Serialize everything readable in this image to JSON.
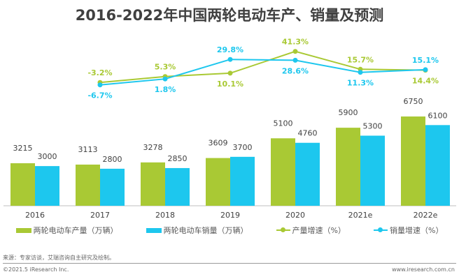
{
  "colors": {
    "production": "#a9c934",
    "sales": "#1dc7ee",
    "text": "#404040"
  },
  "chart_data": {
    "type": "bar+line",
    "title": "2016-2022年中国两轮电动车产、销量及预测",
    "categories": [
      "2016",
      "2017",
      "2018",
      "2019",
      "2020",
      "2021e",
      "2022e"
    ],
    "series": [
      {
        "name": "两轮电动车产量（万辆）",
        "type": "bar",
        "values": [
          3215,
          3113,
          3278,
          3609,
          5100,
          5900,
          6750
        ]
      },
      {
        "name": "两轮电动车销量（万辆）",
        "type": "bar",
        "values": [
          3000,
          2800,
          2850,
          3700,
          4760,
          5300,
          6100
        ]
      },
      {
        "name": "产量增速（%）",
        "type": "line",
        "values": [
          null,
          -3.2,
          5.3,
          10.1,
          41.3,
          15.7,
          14.4
        ]
      },
      {
        "name": "销量增速（%）",
        "type": "line",
        "values": [
          null,
          -6.7,
          1.8,
          29.8,
          28.6,
          11.3,
          15.1
        ]
      }
    ],
    "legend": "bottom"
  },
  "footer": {
    "source": "来源：专家访谈，艾瑞咨询自主研究及绘制。",
    "copyright": "©2021.5 iResearch Inc.",
    "site": "www.iresearch.com.cn"
  }
}
